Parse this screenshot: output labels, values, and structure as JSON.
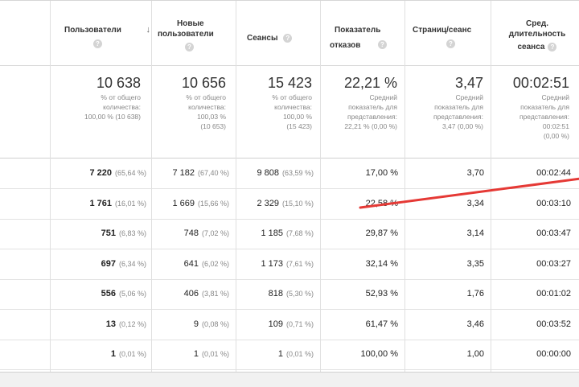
{
  "columns": [
    {
      "id": "users",
      "label": "Пользователи",
      "help": "?",
      "sort": "↓"
    },
    {
      "id": "new_users",
      "label_line1": "Новые",
      "label_line2": "пользователи",
      "help": "?"
    },
    {
      "id": "sessions",
      "label": "Сеансы",
      "help": "?"
    },
    {
      "id": "bounce",
      "label_line1": "Показатель",
      "label_line2": "отказов",
      "help": "?"
    },
    {
      "id": "pages",
      "label": "Страниц/сеанс",
      "help": "?"
    },
    {
      "id": "duration",
      "label_line1": "Сред.",
      "label_line2": "длительность",
      "label_line3": "сеанса",
      "help": "?"
    }
  ],
  "totals": {
    "users": {
      "value": "10 638",
      "sub1": "% от общего",
      "sub2": "количества:",
      "sub3": "100,00 % (10 638)"
    },
    "new_users": {
      "value": "10 656",
      "sub1": "% от общего",
      "sub2": "количества:",
      "sub3": "100,03 %",
      "sub4": "(10 653)"
    },
    "sessions": {
      "value": "15 423",
      "sub1": "% от общего",
      "sub2": "количества:",
      "sub3": "100,00 %",
      "sub4": "(15 423)"
    },
    "bounce": {
      "value": "22,21 %",
      "sub1": "Средний",
      "sub2": "показатель для",
      "sub3": "представления:",
      "sub4": "22,21 % (0,00 %)"
    },
    "pages": {
      "value": "3,47",
      "sub1": "Средний",
      "sub2": "показатель для",
      "sub3": "представления:",
      "sub4": "3,47 (0,00 %)"
    },
    "duration": {
      "value": "00:02:51",
      "sub1": "Средний",
      "sub2": "показатель для",
      "sub3": "представления:",
      "sub4": "00:02:51",
      "sub5": "(0,00 %)"
    }
  },
  "rows": [
    {
      "users": "7 220",
      "users_pct": "(65,64 %)",
      "new_users": "7 182",
      "new_users_pct": "(67,40 %)",
      "sessions": "9 808",
      "sessions_pct": "(63,59 %)",
      "bounce": "17,00 %",
      "pages": "3,70",
      "duration": "00:02:44"
    },
    {
      "users": "1 761",
      "users_pct": "(16,01 %)",
      "new_users": "1 669",
      "new_users_pct": "(15,66 %)",
      "sessions": "2 329",
      "sessions_pct": "(15,10 %)",
      "bounce": "22,58 %",
      "pages": "3,34",
      "duration": "00:03:10"
    },
    {
      "users": "751",
      "users_pct": "(6,83 %)",
      "new_users": "748",
      "new_users_pct": "(7,02 %)",
      "sessions": "1 185",
      "sessions_pct": "(7,68 %)",
      "bounce": "29,87 %",
      "pages": "3,14",
      "duration": "00:03:47"
    },
    {
      "users": "697",
      "users_pct": "(6,34 %)",
      "new_users": "641",
      "new_users_pct": "(6,02 %)",
      "sessions": "1 173",
      "sessions_pct": "(7,61 %)",
      "bounce": "32,14 %",
      "pages": "3,35",
      "duration": "00:03:27"
    },
    {
      "users": "556",
      "users_pct": "(5,06 %)",
      "new_users": "406",
      "new_users_pct": "(3,81 %)",
      "sessions": "818",
      "sessions_pct": "(5,30 %)",
      "bounce": "52,93 %",
      "pages": "1,76",
      "duration": "00:01:02"
    },
    {
      "users": "13",
      "users_pct": "(0,12 %)",
      "new_users": "9",
      "new_users_pct": "(0,08 %)",
      "sessions": "109",
      "sessions_pct": "(0,71 %)",
      "bounce": "61,47 %",
      "pages": "3,46",
      "duration": "00:03:52"
    },
    {
      "users": "1",
      "users_pct": "(0,01 %)",
      "new_users": "1",
      "new_users_pct": "(0,01 %)",
      "sessions": "1",
      "sessions_pct": "(0,01 %)",
      "bounce": "100,00 %",
      "pages": "1,00",
      "duration": "00:00:00"
    }
  ],
  "colors": {
    "arrow": "#e53935",
    "help_icon": "#d4d4d4",
    "grid": "#e0e0e0"
  },
  "icons": {
    "help": "question-circle-icon",
    "sort": "sort-descending-icon",
    "annotation": "red-arrow-annotation"
  }
}
